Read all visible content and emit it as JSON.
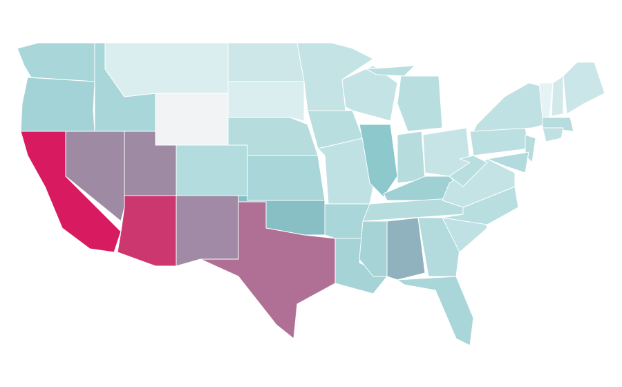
{
  "map": {
    "regions": [
      {
        "color": "#a9d6d8"
      },
      {
        "color": "#a3d3d6"
      },
      {
        "color": "#d81b60"
      },
      {
        "color": "#9f8aa3"
      },
      {
        "color": "#a9d6d8"
      },
      {
        "color": "#daeef0"
      },
      {
        "color": "#f1f3f4"
      },
      {
        "color": "#9f8aa3"
      },
      {
        "color": "#cc3770"
      },
      {
        "color": "#b3dcde"
      },
      {
        "color": "#a18aa5"
      },
      {
        "color": "#cde6e8"
      },
      {
        "color": "#daeef0"
      },
      {
        "color": "#b6dcde"
      },
      {
        "color": "#a9d6d8"
      },
      {
        "color": "#88bfc4"
      },
      {
        "color": "#b07095"
      },
      {
        "color": "#c3e3e5"
      },
      {
        "color": "#b9dee0"
      },
      {
        "color": "#c0e1e3"
      },
      {
        "color": "#a9d6d8"
      },
      {
        "color": "#a6d3d6"
      },
      {
        "color": "#c3e3e5"
      },
      {
        "color": "#8dc8cc"
      },
      {
        "color": "#b9dee0"
      },
      {
        "color": "#b6dcde"
      },
      {
        "color": "#c6e4e6"
      },
      {
        "color": "#9fd0d3"
      },
      {
        "color": "#b6dcde"
      },
      {
        "color": "#a6d3d6"
      },
      {
        "color": "#8fb2be"
      },
      {
        "color": "#b3dadc"
      },
      {
        "color": "#a9d6d8"
      },
      {
        "color": "#c0e1e3"
      },
      {
        "color": "#b9dee0"
      },
      {
        "color": "#c3e3e5"
      },
      {
        "color": "#b9dee0"
      },
      {
        "color": "#bcdfe1"
      },
      {
        "color": "#c0e1e3"
      },
      {
        "color": "#b6dcde"
      },
      {
        "color": "#b3dadc"
      },
      {
        "color": "#e6f3f4"
      },
      {
        "color": "#d2e9ea"
      },
      {
        "color": "#cbe6e8"
      },
      {
        "color": "#b6dcde"
      },
      {
        "color": "#c0e1e3"
      }
    ]
  }
}
